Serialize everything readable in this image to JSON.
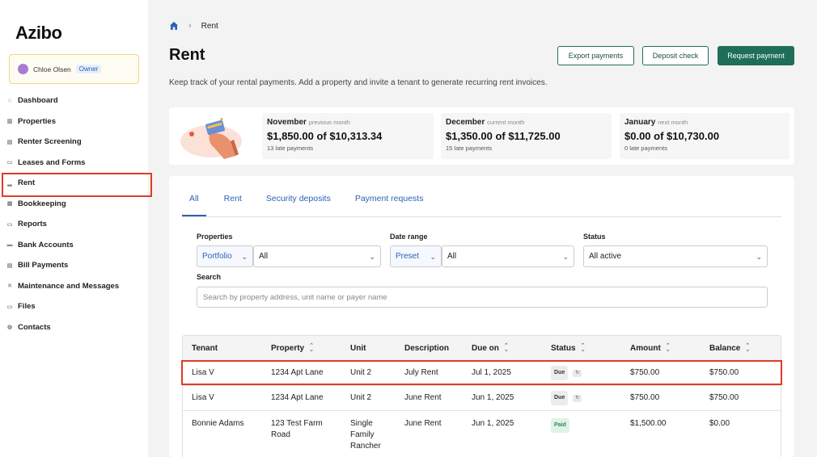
{
  "app": {
    "logo": "Azibo"
  },
  "user": {
    "name": "Chloe Olsen",
    "role": "Owner"
  },
  "sidebar": {
    "items": [
      {
        "label": "Dashboard",
        "icon": "home-icon"
      },
      {
        "label": "Properties",
        "icon": "building-icon"
      },
      {
        "label": "Renter Screening",
        "icon": "clipboard-icon"
      },
      {
        "label": "Leases and Forms",
        "icon": "document-icon"
      },
      {
        "label": "Rent",
        "icon": "chart-icon",
        "active": true
      },
      {
        "label": "Bookkeeping",
        "icon": "ledger-icon"
      },
      {
        "label": "Reports",
        "icon": "report-icon"
      },
      {
        "label": "Bank Accounts",
        "icon": "bank-icon"
      },
      {
        "label": "Bill Payments",
        "icon": "bill-icon"
      },
      {
        "label": "Maintenance and Messages",
        "icon": "wrench-icon"
      },
      {
        "label": "Files",
        "icon": "folder-icon"
      },
      {
        "label": "Contacts",
        "icon": "contacts-icon"
      }
    ]
  },
  "breadcrumb": {
    "current": "Rent"
  },
  "page": {
    "title": "Rent",
    "subtitle": "Keep track of your rental payments. Add a property and invite a tenant to generate recurring rent invoices."
  },
  "actions": {
    "export": "Export payments",
    "deposit": "Deposit check",
    "request": "Request payment"
  },
  "summary": [
    {
      "month": "November",
      "tag": "previous month",
      "amount": "$1,850.00 of $10,313.34",
      "late": "13 late payments"
    },
    {
      "month": "December",
      "tag": "current month",
      "amount": "$1,350.00 of $11,725.00",
      "late": "15 late payments"
    },
    {
      "month": "January",
      "tag": "next month",
      "amount": "$0.00 of $10,730.00",
      "late": "0 late payments"
    }
  ],
  "tabs": [
    "All",
    "Rent",
    "Security deposits",
    "Payment requests"
  ],
  "filters": {
    "properties_label": "Properties",
    "properties_mode": "Portfolio",
    "properties_value": "All",
    "date_label": "Date range",
    "date_mode": "Preset",
    "date_value": "All",
    "status_label": "Status",
    "status_value": "All active",
    "search_label": "Search",
    "search_placeholder": "Search by property address, unit name or payer name"
  },
  "table": {
    "headers": [
      "Tenant",
      "Property",
      "Unit",
      "Description",
      "Due on",
      "Status",
      "Amount",
      "Balance"
    ],
    "rows": [
      {
        "tenant": "Lisa V",
        "property": "1234 Apt Lane",
        "unit": "Unit 2",
        "description": "July Rent",
        "due": "Jul 1, 2025",
        "status": "Due",
        "amount": "$750.00",
        "balance": "$750.00"
      },
      {
        "tenant": "Lisa V",
        "property": "1234 Apt Lane",
        "unit": "Unit 2",
        "description": "June Rent",
        "due": "Jun 1, 2025",
        "status": "Due",
        "amount": "$750.00",
        "balance": "$750.00"
      },
      {
        "tenant": "Bonnie Adams",
        "property": "123 Test Farm Road",
        "unit": "Single Family Rancher",
        "description": "June Rent",
        "due": "Jun 1, 2025",
        "status": "Paid",
        "amount": "$1,500.00",
        "balance": "$0.00"
      }
    ]
  },
  "colors": {
    "accent": "#1f6e5a",
    "link": "#2c62b4",
    "highlight": "#e03a2a"
  }
}
